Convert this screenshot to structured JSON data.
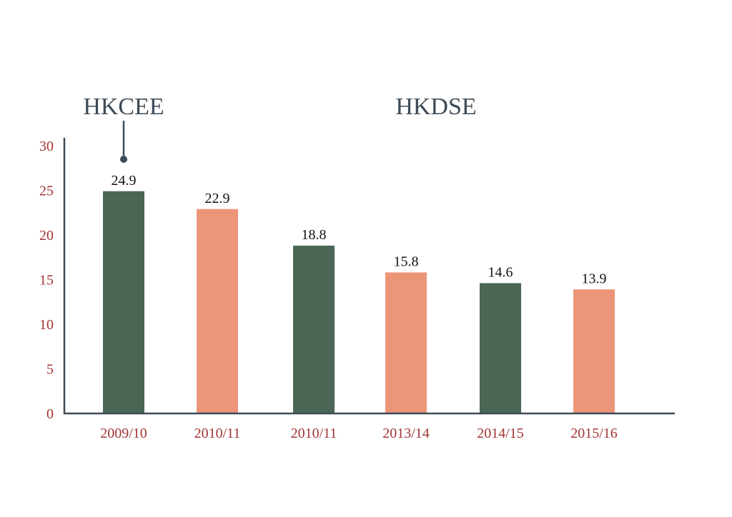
{
  "chart_data": {
    "type": "bar",
    "categories": [
      "2009/10",
      "2010/11",
      "2010/11",
      "2013/14",
      "2014/15",
      "2015/16"
    ],
    "values": [
      24.9,
      22.9,
      18.8,
      15.8,
      14.6,
      13.9
    ],
    "value_labels": [
      "24.9",
      "22.9",
      "18.8",
      "15.8",
      "14.6",
      "13.9"
    ],
    "bar_colors": [
      "#4a6654",
      "#ec9579",
      "#4a6654",
      "#ec9579",
      "#4a6654",
      "#ec9579"
    ],
    "yticks": [
      0,
      5,
      10,
      15,
      20,
      25,
      30
    ],
    "ylim": [
      0,
      30
    ],
    "title": "",
    "xlabel": "",
    "ylabel": "",
    "grid": false,
    "annotations": [
      {
        "text": "HKCEE",
        "target_category_index": 0
      },
      {
        "text": "HKDSE"
      }
    ],
    "colors": {
      "axis": "#3d4b57",
      "tick_label": "#a33434",
      "value_label": "#111111",
      "annotation": "#3d4b57"
    }
  }
}
